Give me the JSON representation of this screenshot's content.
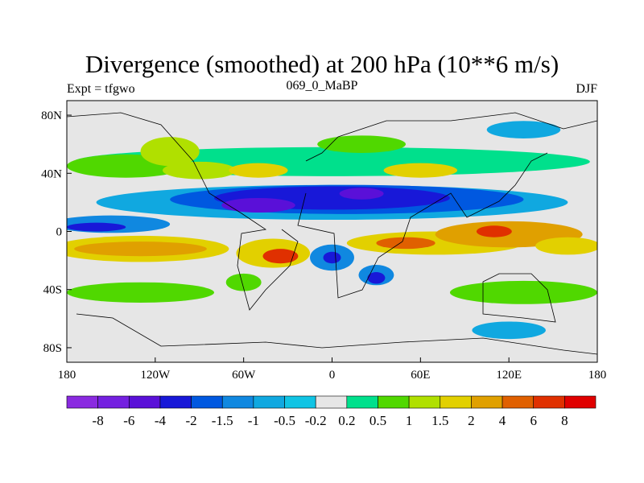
{
  "title": "Divergence (smoothed) at 200 hPa (10**6 m/s)",
  "left_label": "Expt = tfgwo",
  "center_label": "069_0_MaBP",
  "right_label": "DJF",
  "chart_data": {
    "type": "heatmap",
    "title": "Divergence (smoothed) at 200 hPa (10**6 m/s)",
    "xlim": [
      -180,
      180
    ],
    "ylim": [
      -90,
      90
    ],
    "x_ticks": [
      {
        "v": -180,
        "label": "180"
      },
      {
        "v": -120,
        "label": "120W"
      },
      {
        "v": -60,
        "label": "60W"
      },
      {
        "v": 0,
        "label": "0"
      },
      {
        "v": 60,
        "label": "60E"
      },
      {
        "v": 120,
        "label": "120E"
      },
      {
        "v": 180,
        "label": "180"
      }
    ],
    "y_ticks": [
      {
        "v": 80,
        "label": "80N"
      },
      {
        "v": 40,
        "label": "40N"
      },
      {
        "v": 0,
        "label": "0"
      },
      {
        "v": -40,
        "label": "40S"
      },
      {
        "v": -80,
        "label": "80S"
      }
    ],
    "levels": [
      "-8",
      "-6",
      "-4",
      "-2",
      "-1.5",
      "-1",
      "-0.5",
      "-0.2",
      "0.2",
      "0.5",
      "1",
      "1.5",
      "2",
      "4",
      "6",
      "8"
    ],
    "colors": [
      "#8a2ae0",
      "#7420e0",
      "#5a10d8",
      "#1818d8",
      "#0058e0",
      "#1088e0",
      "#10a8e0",
      "#10c4e4",
      "#e6e6e6",
      "#00e08c",
      "#50d800",
      "#b0e000",
      "#e2d000",
      "#e0a000",
      "#e06000",
      "#e03000",
      "#e00000"
    ],
    "features": [
      {
        "lon": 0,
        "lat": 48,
        "rlon": 175,
        "rlat": 10,
        "bin": 9
      },
      {
        "lon": -140,
        "lat": 45,
        "rlon": 40,
        "rlat": 8,
        "bin": 10
      },
      {
        "lon": -110,
        "lat": 55,
        "rlon": 20,
        "rlat": 10,
        "bin": 11
      },
      {
        "lon": -90,
        "lat": 42,
        "rlon": 25,
        "rlat": 6,
        "bin": 11
      },
      {
        "lon": -50,
        "lat": 42,
        "rlon": 20,
        "rlat": 5,
        "bin": 12
      },
      {
        "lon": 60,
        "lat": 42,
        "rlon": 25,
        "rlat": 5,
        "bin": 12
      },
      {
        "lon": 20,
        "lat": 60,
        "rlon": 30,
        "rlat": 6,
        "bin": 10
      },
      {
        "lon": 0,
        "lat": 20,
        "rlon": 160,
        "rlat": 12,
        "bin": 6
      },
      {
        "lon": 10,
        "lat": 22,
        "rlon": 120,
        "rlat": 10,
        "bin": 4
      },
      {
        "lon": 0,
        "lat": 23,
        "rlon": 80,
        "rlat": 8,
        "bin": 3
      },
      {
        "lon": -50,
        "lat": 18,
        "rlon": 25,
        "rlat": 5,
        "bin": 2
      },
      {
        "lon": 20,
        "lat": 26,
        "rlon": 15,
        "rlat": 4,
        "bin": 2
      },
      {
        "lon": -150,
        "lat": 5,
        "rlon": 40,
        "rlat": 6,
        "bin": 5
      },
      {
        "lon": -160,
        "lat": 3,
        "rlon": 20,
        "rlat": 3,
        "bin": 3
      },
      {
        "lon": -130,
        "lat": -12,
        "rlon": 60,
        "rlat": 9,
        "bin": 12
      },
      {
        "lon": -130,
        "lat": -12,
        "rlon": 45,
        "rlat": 5,
        "bin": 13
      },
      {
        "lon": -40,
        "lat": -15,
        "rlon": 25,
        "rlat": 10,
        "bin": 12
      },
      {
        "lon": -35,
        "lat": -17,
        "rlon": 12,
        "rlat": 5,
        "bin": 15
      },
      {
        "lon": 0,
        "lat": -18,
        "rlon": 15,
        "rlat": 9,
        "bin": 5
      },
      {
        "lon": 0,
        "lat": -18,
        "rlon": 6,
        "rlat": 4,
        "bin": 3
      },
      {
        "lon": 70,
        "lat": -8,
        "rlon": 60,
        "rlat": 8,
        "bin": 12
      },
      {
        "lon": 50,
        "lat": -8,
        "rlon": 20,
        "rlat": 4,
        "bin": 14
      },
      {
        "lon": 120,
        "lat": -2,
        "rlon": 50,
        "rlat": 9,
        "bin": 13
      },
      {
        "lon": 110,
        "lat": 0,
        "rlon": 12,
        "rlat": 4,
        "bin": 15
      },
      {
        "lon": 160,
        "lat": -10,
        "rlon": 22,
        "rlat": 6,
        "bin": 12
      },
      {
        "lon": 30,
        "lat": -30,
        "rlon": 12,
        "rlat": 7,
        "bin": 5
      },
      {
        "lon": 30,
        "lat": -32,
        "rlon": 6,
        "rlat": 4,
        "bin": 3
      },
      {
        "lon": -130,
        "lat": -42,
        "rlon": 50,
        "rlat": 7,
        "bin": 10
      },
      {
        "lon": 130,
        "lat": -42,
        "rlon": 50,
        "rlat": 8,
        "bin": 10
      },
      {
        "lon": -60,
        "lat": -35,
        "rlon": 12,
        "rlat": 6,
        "bin": 10
      },
      {
        "lon": 120,
        "lat": -68,
        "rlon": 25,
        "rlat": 6,
        "bin": 6
      },
      {
        "lon": 130,
        "lat": 70,
        "rlon": 25,
        "rlat": 6,
        "bin": 6
      }
    ]
  }
}
